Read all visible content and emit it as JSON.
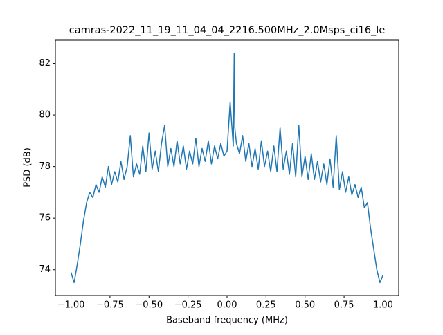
{
  "chart_data": {
    "type": "line",
    "title": "camras-2022_11_19_11_04_04_2216.500MHz_2.0Msps_ci16_le",
    "x_label": "Baseband frequency (MHz)",
    "y_label": "PSD (dB)",
    "xlim": [
      -1.1,
      1.1
    ],
    "ylim": [
      73.0,
      82.9
    ],
    "xticks": [
      {
        "value": -1,
        "label": "−1.00"
      },
      {
        "value": -0.75,
        "label": "−0.75"
      },
      {
        "value": -0.5,
        "label": "−0.50"
      },
      {
        "value": -0.25,
        "label": "−0.25"
      },
      {
        "value": 0,
        "label": "0.00"
      },
      0.25,
      {
        "value": 0.5,
        "label": "0.50"
      },
      0.75,
      {
        "value": 1,
        "label": "1.00"
      }
    ],
    "yticks": [
      74,
      76,
      78,
      80,
      82
    ],
    "x": [
      -1.0,
      -0.98,
      -0.96,
      -0.94,
      -0.92,
      -0.9,
      -0.88,
      -0.86,
      -0.84,
      -0.82,
      -0.8,
      -0.78,
      -0.76,
      -0.74,
      -0.72,
      -0.7,
      -0.68,
      -0.66,
      -0.64,
      -0.62,
      -0.6,
      -0.58,
      -0.56,
      -0.54,
      -0.52,
      -0.5,
      -0.48,
      -0.46,
      -0.44,
      -0.42,
      -0.4,
      -0.38,
      -0.36,
      -0.34,
      -0.32,
      -0.3,
      -0.28,
      -0.26,
      -0.24,
      -0.22,
      -0.2,
      -0.18,
      -0.16,
      -0.14,
      -0.12,
      -0.1,
      -0.08,
      -0.06,
      -0.04,
      -0.02,
      0.0,
      0.02,
      0.04,
      0.046,
      0.05,
      0.06,
      0.08,
      0.1,
      0.12,
      0.14,
      0.16,
      0.18,
      0.2,
      0.22,
      0.24,
      0.26,
      0.28,
      0.3,
      0.32,
      0.34,
      0.36,
      0.38,
      0.4,
      0.42,
      0.44,
      0.46,
      0.48,
      0.5,
      0.52,
      0.54,
      0.56,
      0.58,
      0.6,
      0.62,
      0.64,
      0.66,
      0.68,
      0.7,
      0.72,
      0.74,
      0.76,
      0.78,
      0.8,
      0.82,
      0.84,
      0.86,
      0.88,
      0.9,
      0.92,
      0.94,
      0.96,
      0.98,
      1.0
    ],
    "series": [
      {
        "color": "#1f77b4",
        "values": [
          73.9,
          73.5,
          74.2,
          75.0,
          75.9,
          76.6,
          77.0,
          76.8,
          77.3,
          77.0,
          77.6,
          77.2,
          78.0,
          77.3,
          77.8,
          77.4,
          78.2,
          77.5,
          78.0,
          79.2,
          77.6,
          78.1,
          77.7,
          78.8,
          77.8,
          79.3,
          77.9,
          78.6,
          77.8,
          78.9,
          79.6,
          78.0,
          78.7,
          78.0,
          79.0,
          78.1,
          78.8,
          77.9,
          78.6,
          78.1,
          79.1,
          78.0,
          78.7,
          78.2,
          79.0,
          78.1,
          78.8,
          78.3,
          78.9,
          78.4,
          78.6,
          80.5,
          78.8,
          82.4,
          79.5,
          78.9,
          78.5,
          79.2,
          78.2,
          78.9,
          78.0,
          78.7,
          77.9,
          79.0,
          78.0,
          78.6,
          77.8,
          78.8,
          77.8,
          79.5,
          77.9,
          78.6,
          77.7,
          78.9,
          77.6,
          79.6,
          77.6,
          78.4,
          77.5,
          78.5,
          77.5,
          78.2,
          77.4,
          78.1,
          77.3,
          78.3,
          77.2,
          79.2,
          77.1,
          77.8,
          77.0,
          77.6,
          76.9,
          77.3,
          76.8,
          77.2,
          76.4,
          76.6,
          75.6,
          74.8,
          74.0,
          73.5,
          73.8
        ]
      }
    ]
  }
}
